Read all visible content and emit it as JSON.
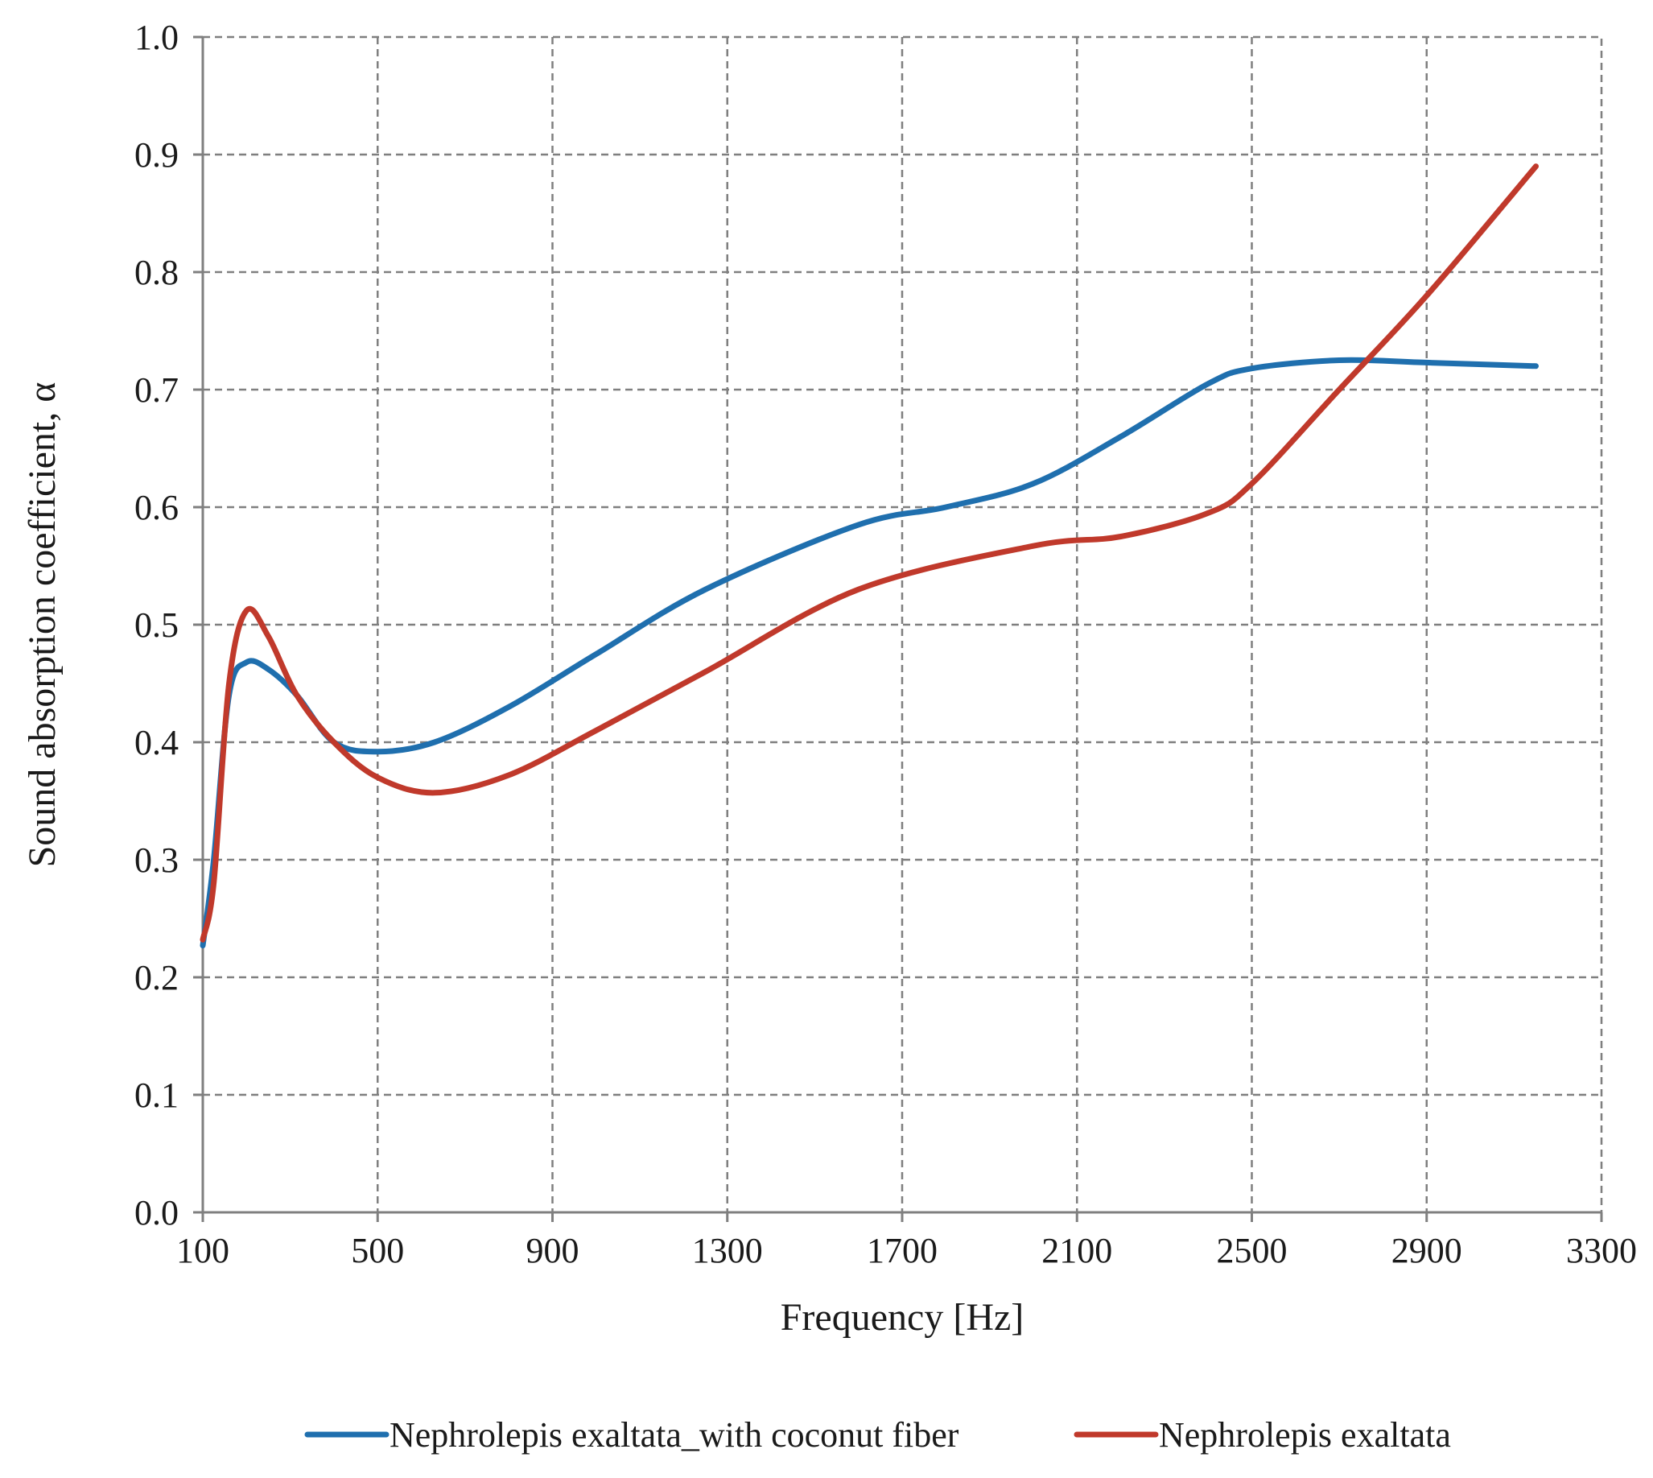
{
  "chart_data": {
    "type": "line",
    "title": "",
    "xlabel": "Frequency [Hz]",
    "ylabel": "Sound absorption coefficient, α",
    "xlim": [
      100,
      3300
    ],
    "ylim": [
      0.0,
      1.0
    ],
    "x_ticks": [
      "100",
      "500",
      "900",
      "1300",
      "1700",
      "2100",
      "2500",
      "2900",
      "3300"
    ],
    "y_ticks": [
      "0.0",
      "0.1",
      "0.2",
      "0.3",
      "0.4",
      "0.5",
      "0.6",
      "0.7",
      "0.8",
      "0.9",
      "1.0"
    ],
    "grid": true,
    "legend_position": "bottom",
    "series": [
      {
        "name": "Nephrolepis exaltata_with coconut fiber",
        "color": "#1f6fae",
        "x": [
          100,
          125,
          160,
          200,
          250,
          315,
          400,
          500,
          630,
          800,
          1000,
          1250,
          1600,
          1800,
          2000,
          2200,
          2400,
          2500,
          2700,
          2900,
          3150
        ],
        "y": [
          0.227,
          0.3,
          0.44,
          0.468,
          0.462,
          0.44,
          0.4,
          0.392,
          0.4,
          0.43,
          0.475,
          0.53,
          0.585,
          0.6,
          0.62,
          0.66,
          0.705,
          0.718,
          0.725,
          0.723,
          0.72
        ]
      },
      {
        "name": "Nephrolepis exaltata",
        "color": "#c0392b",
        "x": [
          100,
          125,
          160,
          200,
          250,
          315,
          400,
          500,
          630,
          800,
          1000,
          1250,
          1600,
          2000,
          2200,
          2400,
          2500,
          2700,
          2900,
          3150
        ],
        "y": [
          0.232,
          0.28,
          0.45,
          0.512,
          0.49,
          0.44,
          0.4,
          0.37,
          0.357,
          0.372,
          0.41,
          0.46,
          0.53,
          0.567,
          0.575,
          0.595,
          0.62,
          0.7,
          0.78,
          0.89
        ]
      }
    ]
  }
}
